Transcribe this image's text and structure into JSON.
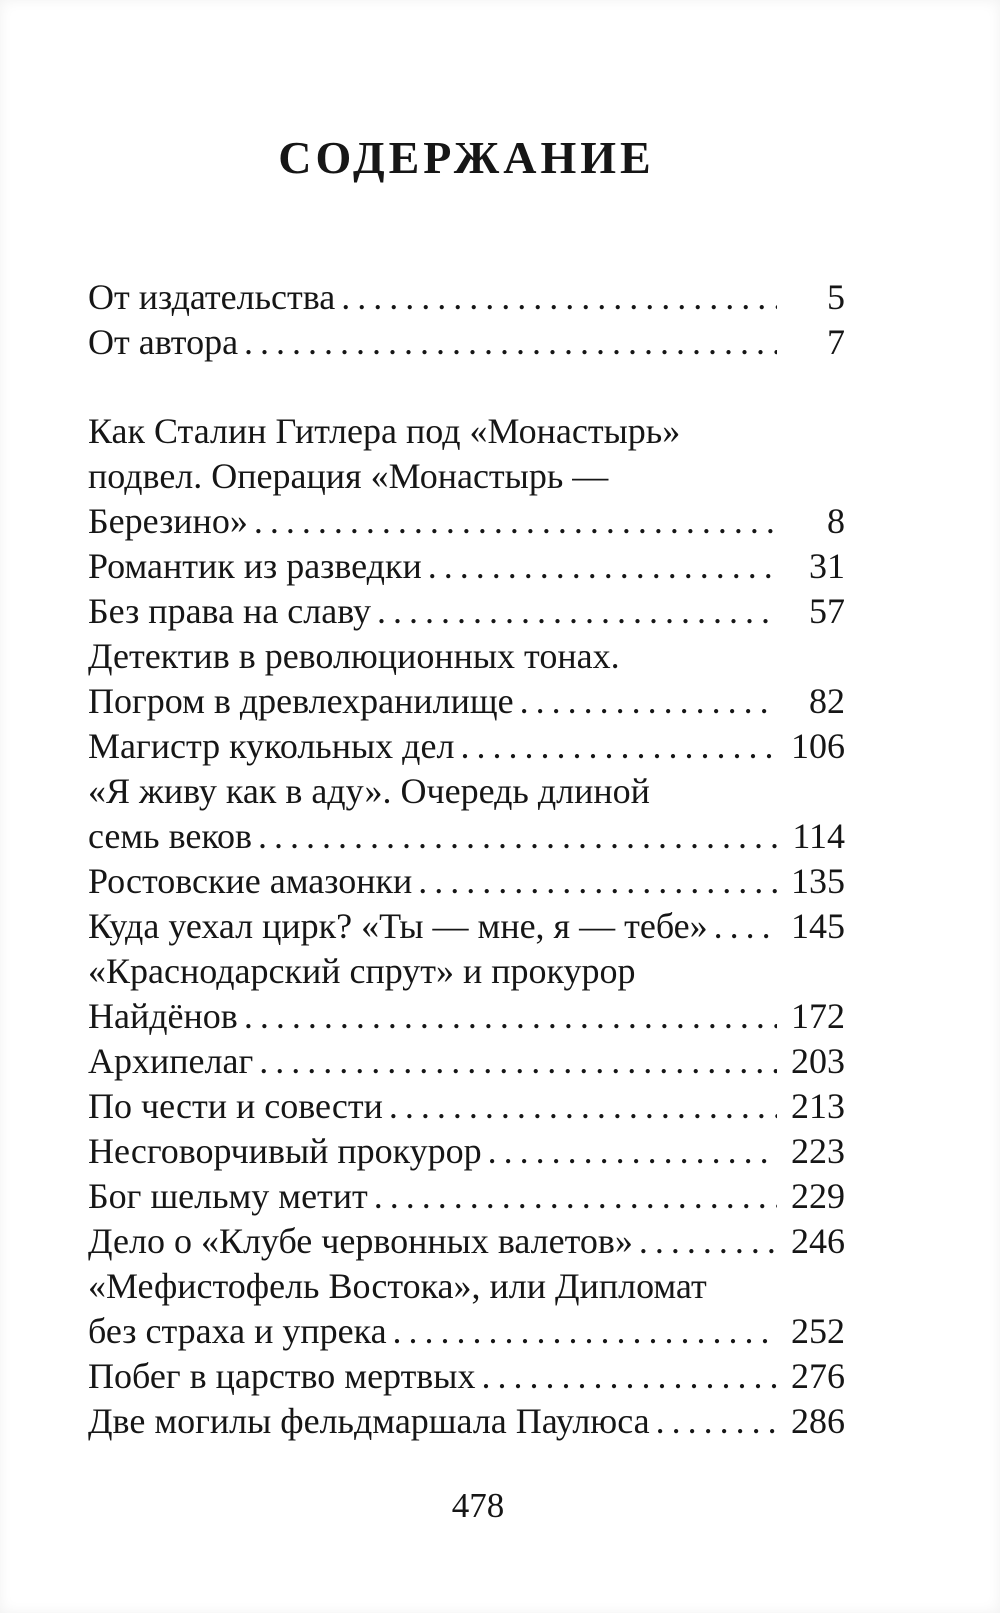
{
  "page": {
    "heading": "СОДЕРЖАНИЕ",
    "folio": "478"
  },
  "colors": {
    "paper": "#ffffff",
    "ink": "#161616"
  },
  "toc": {
    "front_matter": [
      {
        "lines": [
          "От издательства"
        ],
        "page": "5"
      },
      {
        "lines": [
          "От автора"
        ],
        "page": "7"
      }
    ],
    "chapters": [
      {
        "lines": [
          "Как Сталин Гитлера под «Монастырь»",
          "подвел. Операция «Монастырь —",
          "Березино»"
        ],
        "page": "8"
      },
      {
        "lines": [
          "Романтик из разведки"
        ],
        "page": "31"
      },
      {
        "lines": [
          "Без права на славу"
        ],
        "page": "57"
      },
      {
        "lines": [
          "Детектив в революционных тонах.",
          "Погром в древлехранилище"
        ],
        "page": "82"
      },
      {
        "lines": [
          "Магистр кукольных дел"
        ],
        "page": "106"
      },
      {
        "lines": [
          "«Я живу как в аду». Очередь длиной",
          "семь веков"
        ],
        "page": "114"
      },
      {
        "lines": [
          "Ростовские амазонки"
        ],
        "page": "135"
      },
      {
        "lines": [
          "Куда уехал цирк? «Ты — мне, я — тебе»"
        ],
        "page": "145"
      },
      {
        "lines": [
          "«Краснодарский спрут» и прокурор",
          "Найдёнов"
        ],
        "page": "172"
      },
      {
        "lines": [
          "Архипелаг"
        ],
        "page": "203"
      },
      {
        "lines": [
          "По чести и совести"
        ],
        "page": "213"
      },
      {
        "lines": [
          "Несговорчивый прокурор"
        ],
        "page": "223"
      },
      {
        "lines": [
          "Бог шельму метит"
        ],
        "page": "229"
      },
      {
        "lines": [
          "Дело о «Клубе червонных валетов»"
        ],
        "page": "246"
      },
      {
        "lines": [
          "«Мефистофель Востока», или Дипломат",
          "без страха и упрека"
        ],
        "page": "252"
      },
      {
        "lines": [
          "Побег в царство мертвых"
        ],
        "page": "276"
      },
      {
        "lines": [
          "Две могилы фельдмаршала Паулюса"
        ],
        "page": "286"
      }
    ]
  }
}
